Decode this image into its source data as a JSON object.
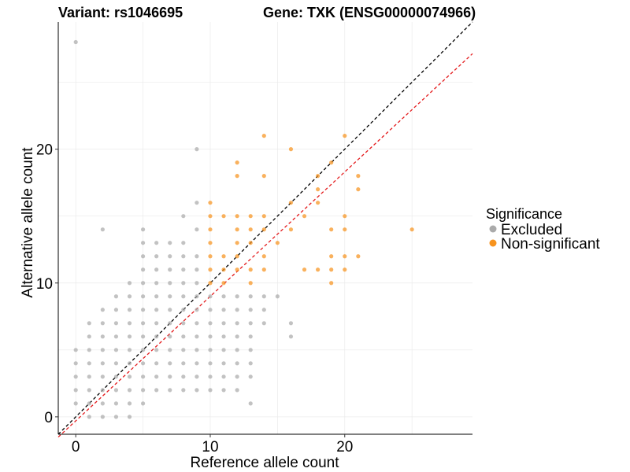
{
  "chart_data": {
    "type": "scatter",
    "title_left": "Variant: rs1046695",
    "title_right": "Gene: TXK (ENSG00000074966)",
    "xlabel": "Reference allele count",
    "ylabel": "Alternative allele count",
    "xlim": [
      -1.3,
      29.5
    ],
    "ylim": [
      -1.3,
      29.5
    ],
    "x_ticks": [
      0,
      10,
      20
    ],
    "y_ticks": [
      0,
      10,
      20
    ],
    "grid": true,
    "legend": {
      "title": "Significance",
      "position": "right",
      "entries": [
        {
          "label": "Excluded",
          "color": "#aaaaaa"
        },
        {
          "label": "Non-significant",
          "color": "#f7931e"
        }
      ]
    },
    "reference_lines": [
      {
        "name": "y = x",
        "intercept": 0,
        "slope": 1,
        "color": "#000000",
        "style": "dashed"
      },
      {
        "name": "fit",
        "intercept": -0.3,
        "slope": 0.93,
        "color": "#e41a1c",
        "style": "dashed"
      }
    ],
    "series": [
      {
        "name": "Excluded",
        "color": "#aaaaaa",
        "points": [
          [
            0,
            28
          ],
          [
            0,
            5
          ],
          [
            0,
            4
          ],
          [
            0,
            3
          ],
          [
            0,
            2
          ],
          [
            0,
            1
          ],
          [
            1,
            7
          ],
          [
            1,
            6
          ],
          [
            1,
            5
          ],
          [
            1,
            4
          ],
          [
            1,
            3
          ],
          [
            1,
            2
          ],
          [
            1,
            1
          ],
          [
            1,
            0
          ],
          [
            2,
            14
          ],
          [
            2,
            8
          ],
          [
            2,
            7
          ],
          [
            2,
            6
          ],
          [
            2,
            5
          ],
          [
            2,
            4
          ],
          [
            2,
            3
          ],
          [
            2,
            2
          ],
          [
            2,
            1
          ],
          [
            2,
            0
          ],
          [
            3,
            9
          ],
          [
            3,
            8
          ],
          [
            3,
            7
          ],
          [
            3,
            6
          ],
          [
            3,
            5
          ],
          [
            3,
            4
          ],
          [
            3,
            3
          ],
          [
            3,
            2
          ],
          [
            3,
            1
          ],
          [
            3,
            0
          ],
          [
            4,
            10
          ],
          [
            4,
            9
          ],
          [
            4,
            8
          ],
          [
            4,
            7
          ],
          [
            4,
            6
          ],
          [
            4,
            5
          ],
          [
            4,
            4
          ],
          [
            4,
            3
          ],
          [
            4,
            2
          ],
          [
            4,
            1
          ],
          [
            4,
            0
          ],
          [
            5,
            14
          ],
          [
            5,
            13
          ],
          [
            5,
            12
          ],
          [
            5,
            11
          ],
          [
            5,
            10
          ],
          [
            5,
            9
          ],
          [
            5,
            8
          ],
          [
            5,
            7
          ],
          [
            5,
            6
          ],
          [
            5,
            5
          ],
          [
            5,
            4
          ],
          [
            5,
            3
          ],
          [
            5,
            2
          ],
          [
            5,
            1
          ],
          [
            6,
            13
          ],
          [
            6,
            12
          ],
          [
            6,
            11
          ],
          [
            6,
            10
          ],
          [
            6,
            9
          ],
          [
            6,
            8
          ],
          [
            6,
            7
          ],
          [
            6,
            6
          ],
          [
            6,
            5
          ],
          [
            6,
            4
          ],
          [
            6,
            3
          ],
          [
            6,
            2
          ],
          [
            7,
            13
          ],
          [
            7,
            12
          ],
          [
            7,
            11
          ],
          [
            7,
            10
          ],
          [
            7,
            9
          ],
          [
            7,
            8
          ],
          [
            7,
            7
          ],
          [
            7,
            6
          ],
          [
            7,
            5
          ],
          [
            7,
            4
          ],
          [
            7,
            3
          ],
          [
            7,
            2
          ],
          [
            8,
            15
          ],
          [
            8,
            13
          ],
          [
            8,
            12
          ],
          [
            8,
            11
          ],
          [
            8,
            10
          ],
          [
            8,
            9
          ],
          [
            8,
            8
          ],
          [
            8,
            7
          ],
          [
            8,
            6
          ],
          [
            8,
            5
          ],
          [
            8,
            4
          ],
          [
            8,
            3
          ],
          [
            8,
            2
          ],
          [
            9,
            20
          ],
          [
            9,
            16
          ],
          [
            9,
            14
          ],
          [
            9,
            12
          ],
          [
            9,
            11
          ],
          [
            9,
            10
          ],
          [
            9,
            9
          ],
          [
            9,
            8
          ],
          [
            9,
            7
          ],
          [
            9,
            6
          ],
          [
            9,
            5
          ],
          [
            9,
            4
          ],
          [
            9,
            3
          ],
          [
            9,
            2
          ],
          [
            10,
            9
          ],
          [
            10,
            8
          ],
          [
            10,
            7
          ],
          [
            10,
            6
          ],
          [
            10,
            5
          ],
          [
            10,
            4
          ],
          [
            10,
            3
          ],
          [
            10,
            2
          ],
          [
            11,
            9
          ],
          [
            11,
            8
          ],
          [
            11,
            7
          ],
          [
            11,
            6
          ],
          [
            11,
            5
          ],
          [
            11,
            4
          ],
          [
            11,
            3
          ],
          [
            11,
            2
          ],
          [
            12,
            9
          ],
          [
            12,
            8
          ],
          [
            12,
            7
          ],
          [
            12,
            6
          ],
          [
            12,
            5
          ],
          [
            12,
            4
          ],
          [
            12,
            3
          ],
          [
            12,
            2
          ],
          [
            13,
            9
          ],
          [
            13,
            8
          ],
          [
            13,
            7
          ],
          [
            13,
            6
          ],
          [
            13,
            5
          ],
          [
            13,
            4
          ],
          [
            13,
            3
          ],
          [
            13,
            1
          ],
          [
            14,
            9
          ],
          [
            14,
            8
          ],
          [
            14,
            7
          ],
          [
            15,
            9
          ],
          [
            16,
            7
          ],
          [
            16,
            6
          ]
        ]
      },
      {
        "name": "Non-significant",
        "color": "#f7931e",
        "points": [
          [
            10,
            16
          ],
          [
            10,
            15
          ],
          [
            10,
            14
          ],
          [
            10,
            13
          ],
          [
            10,
            12
          ],
          [
            10,
            11
          ],
          [
            10,
            10
          ],
          [
            11,
            15
          ],
          [
            11,
            12
          ],
          [
            11,
            11
          ],
          [
            11,
            10
          ],
          [
            12,
            19
          ],
          [
            12,
            18
          ],
          [
            12,
            15
          ],
          [
            12,
            14
          ],
          [
            12,
            13
          ],
          [
            12,
            12
          ],
          [
            12,
            11
          ],
          [
            13,
            15
          ],
          [
            13,
            14
          ],
          [
            13,
            13
          ],
          [
            13,
            11
          ],
          [
            13,
            10
          ],
          [
            14,
            21
          ],
          [
            14,
            18
          ],
          [
            14,
            15
          ],
          [
            14,
            14
          ],
          [
            14,
            12
          ],
          [
            14,
            11
          ],
          [
            15,
            13
          ],
          [
            16,
            20
          ],
          [
            16,
            16
          ],
          [
            16,
            14
          ],
          [
            17,
            15
          ],
          [
            17,
            11
          ],
          [
            18,
            18
          ],
          [
            18,
            17
          ],
          [
            18,
            16
          ],
          [
            18,
            11
          ],
          [
            19,
            19
          ],
          [
            19,
            14
          ],
          [
            19,
            12
          ],
          [
            19,
            11
          ],
          [
            19,
            10
          ],
          [
            20,
            21
          ],
          [
            20,
            15
          ],
          [
            20,
            14
          ],
          [
            20,
            12
          ],
          [
            20,
            11
          ],
          [
            21,
            18
          ],
          [
            21,
            17
          ],
          [
            21,
            12
          ],
          [
            25,
            14
          ]
        ]
      }
    ]
  }
}
